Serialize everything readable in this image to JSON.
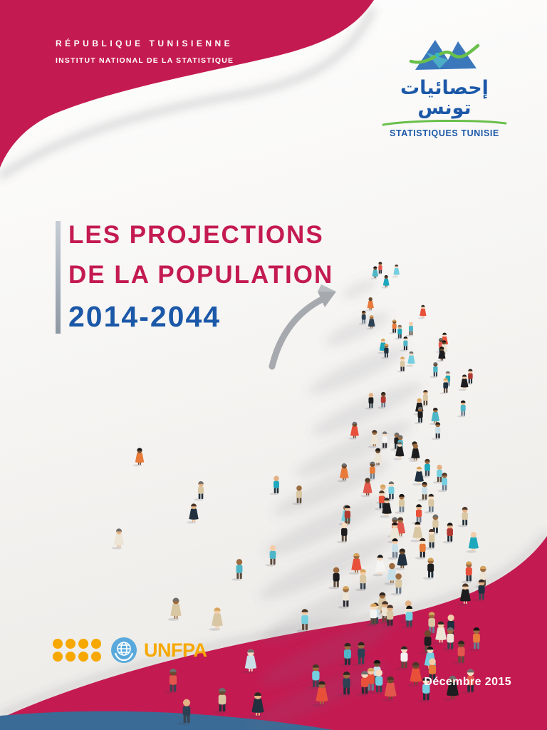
{
  "header": {
    "line1": "RÉPUBLIQUE TUNISIENNE",
    "line2": "INSTITUT NATIONAL DE LA STATISTIQUE"
  },
  "logo": {
    "arabic": "إحصائيات تونس",
    "caption": "STATISTIQUES TUNISIE"
  },
  "title": {
    "line1": "LES PROJECTIONS",
    "line2": "DE LA POPULATION",
    "years": "2014-2044"
  },
  "footer": {
    "unfpa_label": "UNFPA",
    "date": "Décembre 2015"
  },
  "colors": {
    "crimson": "#c41a52",
    "blue": "#1b58a8",
    "steel_blue_accent": "#3a6b96",
    "green": "#6abf4b",
    "unfpa_orange": "#f7a800",
    "un_blue": "#5aa9dc",
    "arrow_gray": "#a6aaae"
  },
  "illustration": {
    "name": "crowd-of-people-cluster",
    "person_count": 131,
    "shirt_palette": [
      "#e2574c",
      "#e87b3a",
      "#1ea8bd",
      "#74cfe0",
      "#2d4154",
      "#20303f",
      "#ece4d4",
      "#f4f4f2",
      "#d9c7a3",
      "#1d1d1f",
      "#b03a31",
      "#4fb6c8",
      "#c9dfe8",
      "#e8503a"
    ],
    "skin_palette": [
      "#f3cda9",
      "#e3b184",
      "#9c6b3f",
      "#6b4a2e",
      "#f7dcc0"
    ],
    "hair_palette": [
      "#2e2620",
      "#4a362a",
      "#141414",
      "#d7a45c",
      "#6e6e6e"
    ],
    "pants_palette": [
      "#2b2b33",
      "#394450",
      "#6b7b8a",
      "#23303a",
      "#5d4a3a"
    ]
  }
}
